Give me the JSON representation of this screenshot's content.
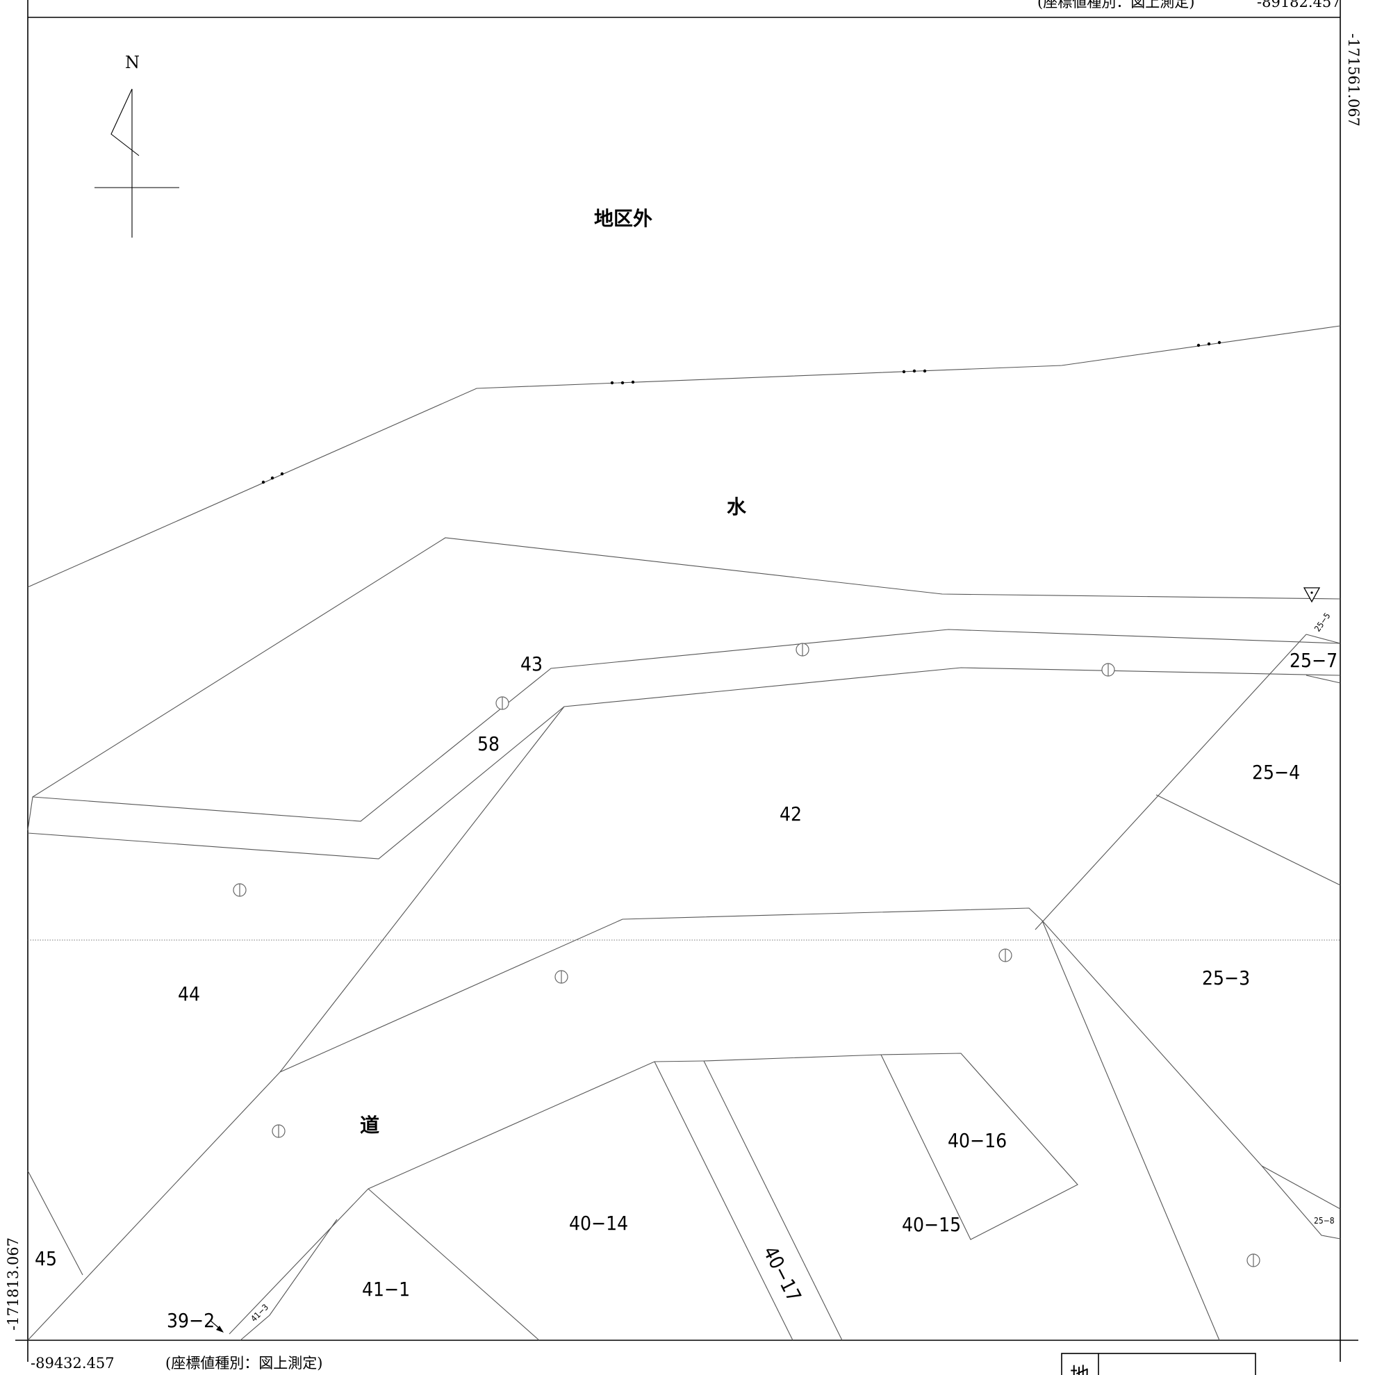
{
  "north_label": "N",
  "coordinates": {
    "top_right": "-89182.457",
    "top_right_kind": "(座標値種別：図上測定)",
    "right_vertical": "-171561.067",
    "left_vertical": "-171813.067",
    "bottom_left": "-89432.457",
    "bottom_kind": "(座標値種別：図上測定)"
  },
  "area_labels": {
    "outside_district": "地区外",
    "water": "水",
    "road": "道"
  },
  "parcels": {
    "p43": "43",
    "p58": "58",
    "p42": "42",
    "p44": "44",
    "p45": "45",
    "p25_7": "25−7",
    "p25_5": "25−5",
    "p25_4": "25−4",
    "p25_3": "25−3",
    "p25_8": "25−8",
    "p40_16": "40−16",
    "p40_14": "40−14",
    "p40_15": "40−15",
    "p40_17": "40−17",
    "p41_1": "41−1",
    "p41_3": "41−3",
    "p39_2": "39−2"
  },
  "legend": {
    "corner_char": "地"
  }
}
